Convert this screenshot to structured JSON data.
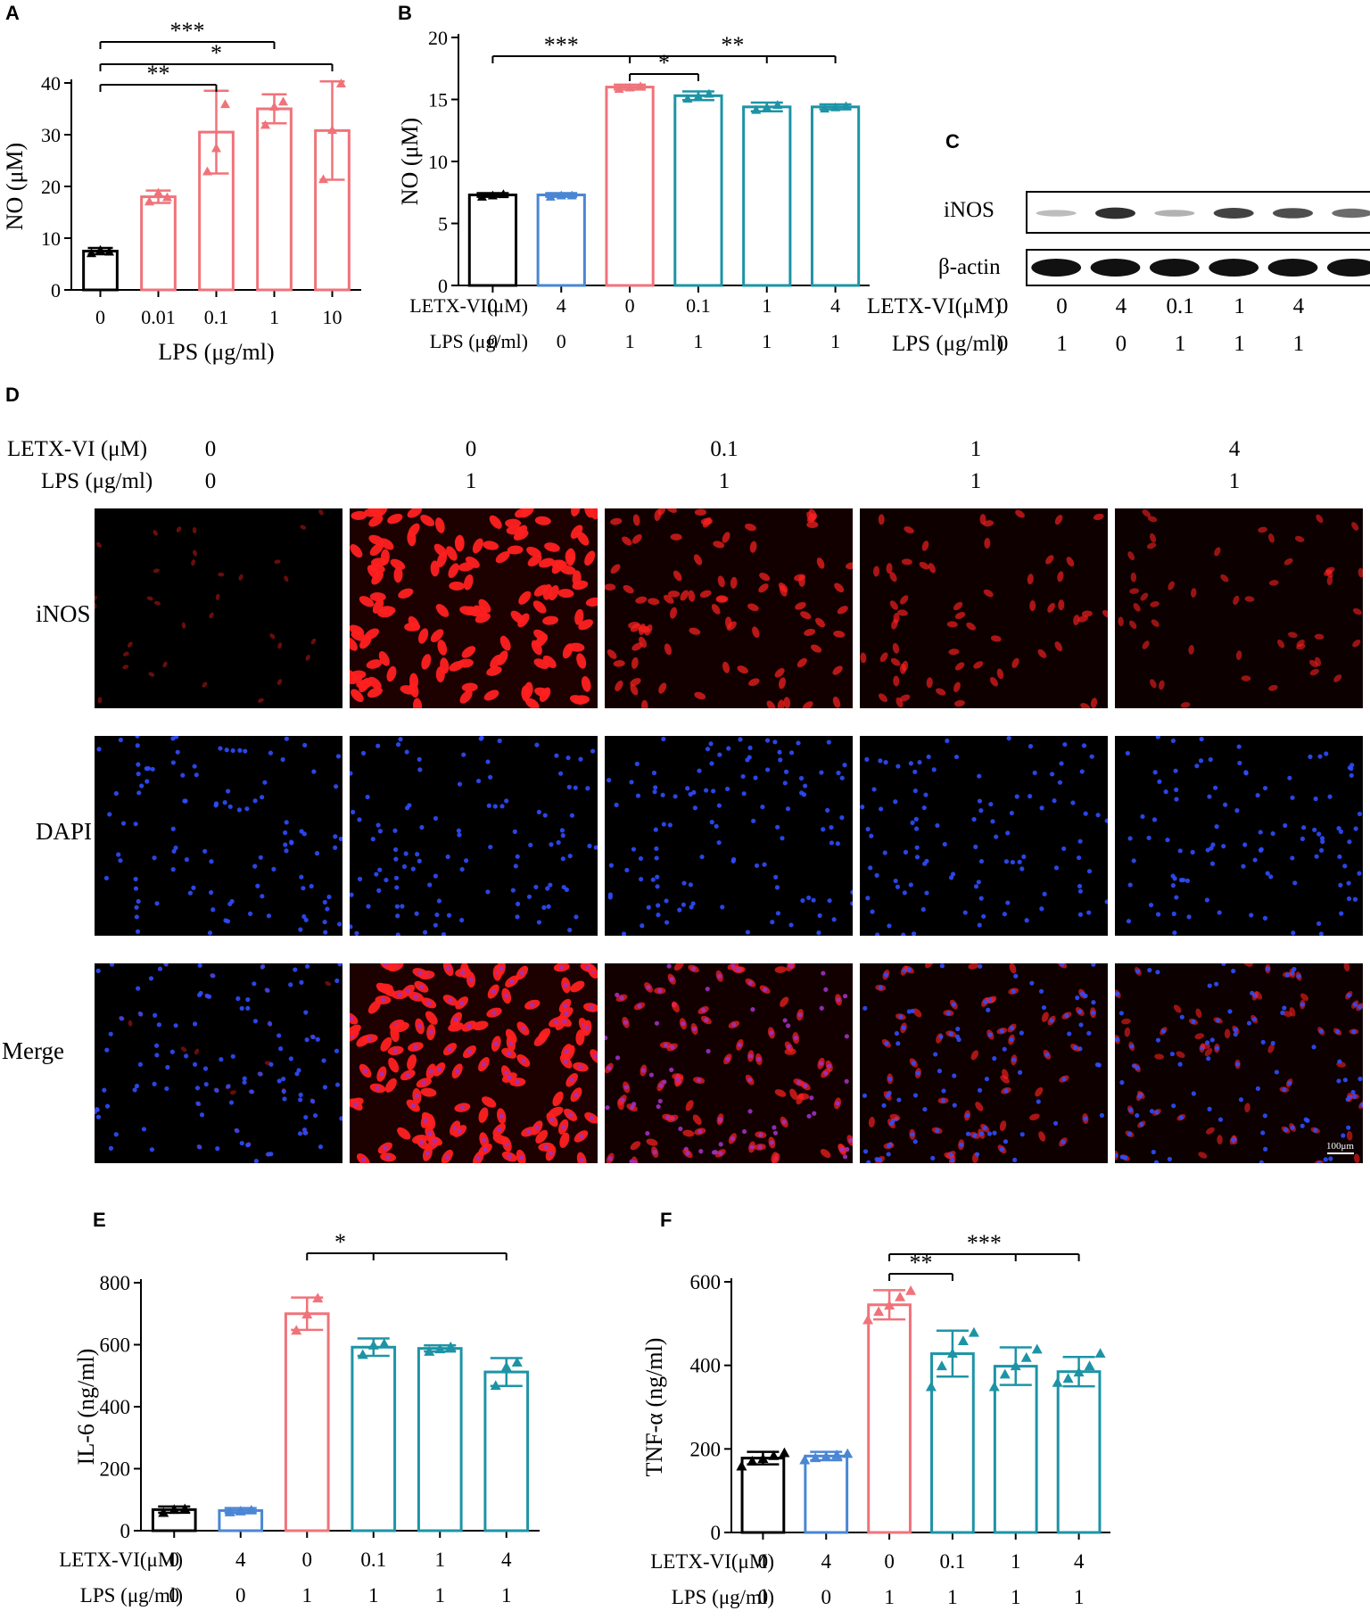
{
  "colors": {
    "black": "#000000",
    "blue": "#4a86d4",
    "red": "#f0737a",
    "teal": "#1d94a6",
    "fluor_red": "#ff2020",
    "fluor_blue": "#2f4cff"
  },
  "panels": {
    "A": "A",
    "B": "B",
    "C": "C",
    "D": "D",
    "E": "E",
    "F": "F"
  },
  "chart_data": [
    {
      "id": "A",
      "type": "bar",
      "xlabel": "LPS (μg/ml)",
      "ylabel": "NO (μM)",
      "categories": [
        "0",
        "0.01",
        "0.1",
        "1",
        "10"
      ],
      "values": [
        7.5,
        18,
        30.5,
        35,
        30.8
      ],
      "errors": [
        0.6,
        1.2,
        8,
        2.8,
        9.5
      ],
      "points": [
        [
          7.2,
          7.8,
          7.5
        ],
        [
          17.2,
          18.9,
          18.0
        ],
        [
          23,
          27.5,
          36
        ],
        [
          32,
          35.5,
          36.5
        ],
        [
          21.5,
          31,
          40
        ]
      ],
      "colors": [
        "#000000",
        "#f0737a",
        "#f0737a",
        "#f0737a",
        "#f0737a"
      ],
      "ylim": [
        0,
        40
      ],
      "yticks": [
        0,
        10,
        20,
        30,
        40
      ],
      "significance": [
        {
          "from": 0,
          "to": 3,
          "label": "***"
        },
        {
          "from": 0,
          "to": 4,
          "label": "*"
        },
        {
          "from": 0,
          "to": 2,
          "label": "**"
        }
      ]
    },
    {
      "id": "B",
      "type": "bar",
      "ylabel": "NO (μM)",
      "row_labels": [
        "LETX-VI(μM)",
        "LPS (μg/ml)"
      ],
      "row1": [
        "0",
        "4",
        "0",
        "0.1",
        "1",
        "4"
      ],
      "row2": [
        "0",
        "0",
        "1",
        "1",
        "1",
        "1"
      ],
      "values": [
        7.3,
        7.3,
        16,
        15.3,
        14.4,
        14.4
      ],
      "errors": [
        0.15,
        0.15,
        0.2,
        0.35,
        0.35,
        0.2
      ],
      "points": [
        [
          7.2,
          7.3,
          7.4
        ],
        [
          7.2,
          7.3,
          7.3
        ],
        [
          15.9,
          16.0,
          16.1
        ],
        [
          15.1,
          15.3,
          15.5
        ],
        [
          14.2,
          14.4,
          14.6
        ],
        [
          14.3,
          14.4,
          14.5
        ]
      ],
      "colors": [
        "#000000",
        "#4a86d4",
        "#f0737a",
        "#1d94a6",
        "#1d94a6",
        "#1d94a6"
      ],
      "ylim": [
        0,
        20
      ],
      "yticks": [
        0,
        5,
        10,
        15,
        20
      ],
      "significance": [
        {
          "from": 0,
          "to": 2,
          "label": "***"
        },
        {
          "from": 2,
          "to": 5,
          "label": "**",
          "tick": 4
        },
        {
          "from": 2,
          "to": 3,
          "label": "*"
        }
      ]
    },
    {
      "id": "E",
      "type": "bar",
      "ylabel": "IL-6 (ng/ml)",
      "row_labels": [
        "LETX-VI(μM)",
        "LPS (μg/ml)"
      ],
      "row1": [
        "0",
        "4",
        "0",
        "0.1",
        "1",
        "4"
      ],
      "row2": [
        "0",
        "0",
        "1",
        "1",
        "1",
        "1"
      ],
      "values": [
        68,
        65,
        700,
        592,
        588,
        512
      ],
      "errors": [
        10,
        8,
        52,
        28,
        10,
        45
      ],
      "points": [
        [
          60,
          70,
          72
        ],
        [
          62,
          65,
          68
        ],
        [
          648,
          700,
          752
        ],
        [
          570,
          600,
          605
        ],
        [
          580,
          588,
          595
        ],
        [
          470,
          530,
          545
        ]
      ],
      "colors": [
        "#000000",
        "#4a86d4",
        "#f0737a",
        "#1d94a6",
        "#1d94a6",
        "#1d94a6"
      ],
      "ylim": [
        0,
        800
      ],
      "yticks": [
        0,
        200,
        400,
        600,
        800
      ],
      "significance": [
        {
          "from": 2,
          "to": 5,
          "label": "*",
          "tick": 3
        }
      ]
    },
    {
      "id": "F",
      "type": "bar",
      "ylabel": "TNF-α (ng/ml)",
      "row_labels": [
        "LETX-VI(μM)",
        "LPS (μg/ml)"
      ],
      "row1": [
        "0",
        "4",
        "0",
        "0.1",
        "1",
        "4"
      ],
      "row2": [
        "0",
        "0",
        "1",
        "1",
        "1",
        "1"
      ],
      "values": [
        178,
        183,
        545,
        428,
        398,
        385
      ],
      "errors": [
        15,
        10,
        35,
        55,
        45,
        35
      ],
      "points": [
        [
          160,
          172,
          178,
          185,
          192
        ],
        [
          175,
          180,
          183,
          187,
          190
        ],
        [
          510,
          530,
          545,
          565,
          580
        ],
        [
          350,
          400,
          430,
          460,
          480
        ],
        [
          350,
          380,
          400,
          420,
          440
        ],
        [
          360,
          370,
          385,
          400,
          430
        ]
      ],
      "colors": [
        "#000000",
        "#4a86d4",
        "#f0737a",
        "#1d94a6",
        "#1d94a6",
        "#1d94a6"
      ],
      "ylim": [
        0,
        600
      ],
      "yticks": [
        0,
        200,
        400,
        600
      ],
      "significance": [
        {
          "from": 2,
          "to": 5,
          "label": "***",
          "tick": 4
        },
        {
          "from": 2,
          "to": 3,
          "label": "**"
        }
      ]
    }
  ],
  "blot": {
    "bands": [
      "iNOS",
      "β-actin"
    ],
    "inos_intensity": [
      0.15,
      0.85,
      0.2,
      0.75,
      0.7,
      0.55
    ],
    "actin_intensity": [
      1,
      1,
      1,
      1,
      1,
      1
    ],
    "row_labels": [
      "LETX-VI(μM)",
      "LPS (μg/ml)"
    ],
    "row1": [
      "0",
      "0",
      "4",
      "0.1",
      "1",
      "4"
    ],
    "row2": [
      "0",
      "1",
      "0",
      "1",
      "1",
      "1"
    ]
  },
  "imaging": {
    "row_labels": [
      "LETX-VI (μM)",
      "LPS (μg/ml)"
    ],
    "row1": [
      "0",
      "0",
      "0.1",
      "1",
      "4"
    ],
    "row2": [
      "0",
      "1",
      "1",
      "1",
      "1"
    ],
    "stains": [
      "iNOS",
      "DAPI",
      "Merge"
    ],
    "red_intensity": [
      0.1,
      1,
      0.6,
      0.5,
      0.4
    ],
    "scale_bar": "100μm"
  }
}
